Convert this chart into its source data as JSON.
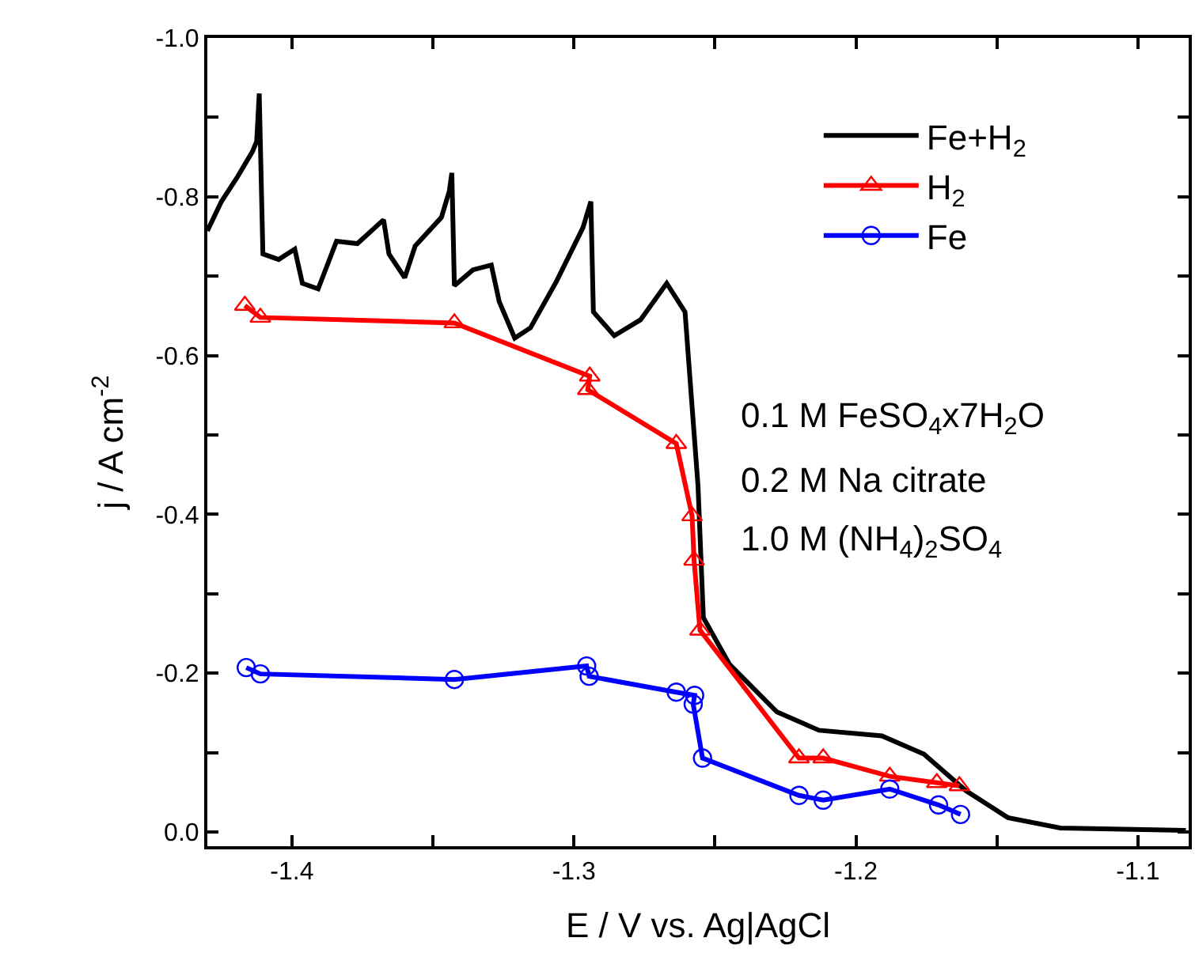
{
  "chart_data": {
    "type": "line",
    "xlabel": "E / V vs. Ag|AgCl",
    "ylabel": "j / A cm$^{-2}$",
    "xlim": [
      -1.43,
      -1.082
    ],
    "ylim": [
      0.018,
      -1.0
    ],
    "xticks": [
      -1.4,
      {
        "value": -1.35,
        "label": null
      },
      -1.3,
      {
        "value": -1.25,
        "label": null
      },
      -1.2,
      {
        "value": -1.15,
        "label": null
      },
      -1.1
    ],
    "yticks": [
      {
        "value": -1.0,
        "label": "-1.0"
      },
      {
        "value": -0.9,
        "label": null
      },
      -0.8,
      {
        "value": -0.7,
        "label": null
      },
      -0.6,
      {
        "value": -0.5,
        "label": null
      },
      -0.4,
      {
        "value": -0.3,
        "label": null
      },
      -0.2,
      {
        "value": -0.1,
        "label": null
      },
      {
        "value": 0.0,
        "label": "0.0"
      }
    ],
    "legend": "top right",
    "annotations": [
      "0.1 M FeSO$_{4}$x7H$_{2}$O",
      "0.2 M Na citrate",
      "1.0 M (NH$_{4}$)$_{2}$SO$_{4}$"
    ],
    "series": [
      {
        "name": "Fe+H$_{2}$",
        "color": "#000000",
        "marker": "none",
        "x": [
          -1.43,
          -1.425,
          -1.4195,
          -1.414,
          -1.4125,
          -1.4116,
          -1.4103,
          -1.4047,
          -1.399,
          -1.3963,
          -1.3907,
          -1.3842,
          -1.3768,
          -1.3675,
          -1.3656,
          -1.36,
          -1.3563,
          -1.347,
          -1.3442,
          -1.3433,
          -1.3424,
          -1.3358,
          -1.3293,
          -1.3265,
          -1.321,
          -1.3154,
          -1.3061,
          -1.2968,
          -1.294,
          -1.2931,
          -1.2857,
          -1.2764,
          -1.2671,
          -1.2606,
          -1.2588,
          -1.256,
          -1.2541,
          -1.2448,
          -1.228,
          -1.2131,
          -1.1908,
          -1.1759,
          -1.161,
          -1.1461,
          -1.1275,
          -1.083
        ],
        "values": [
          -0.757,
          -0.794,
          -0.824,
          -0.857,
          -0.87,
          -0.93,
          -0.728,
          -0.721,
          -0.734,
          -0.691,
          -0.684,
          -0.744,
          -0.741,
          -0.771,
          -0.728,
          -0.698,
          -0.738,
          -0.774,
          -0.807,
          -0.83,
          -0.688,
          -0.708,
          -0.714,
          -0.668,
          -0.622,
          -0.635,
          -0.694,
          -0.761,
          -0.794,
          -0.655,
          -0.625,
          -0.645,
          -0.691,
          -0.655,
          -0.569,
          -0.436,
          -0.27,
          -0.211,
          -0.151,
          -0.128,
          -0.121,
          -0.098,
          -0.052,
          -0.018,
          -0.005,
          -0.002
        ]
      },
      {
        "name": "H$_{2}$",
        "color": "#ff0000",
        "marker": "triangle",
        "x": [
          -1.4167,
          -1.4112,
          -1.3424,
          -1.2944,
          -1.2951,
          -1.2637,
          -1.2581,
          -1.2574,
          -1.2553,
          -1.2202,
          -1.2116,
          -1.188,
          -1.1713,
          -1.1633
        ],
        "values": [
          -0.663,
          -0.648,
          -0.641,
          -0.574,
          -0.557,
          -0.489,
          -0.398,
          -0.342,
          -0.254,
          -0.093,
          -0.093,
          -0.07,
          -0.062,
          -0.058
        ]
      },
      {
        "name": "Fe",
        "color": "#0000ff",
        "marker": "circle",
        "x": [
          -1.4162,
          -1.4112,
          -1.3424,
          -1.2955,
          -1.2946,
          -1.2637,
          -1.2572,
          -1.2577,
          -1.2544,
          -1.2202,
          -1.2116,
          -1.188,
          -1.1707,
          -1.1629
        ],
        "values": [
          -0.207,
          -0.199,
          -0.192,
          -0.209,
          -0.196,
          -0.176,
          -0.172,
          -0.161,
          -0.093,
          -0.046,
          -0.04,
          -0.054,
          -0.034,
          -0.022
        ]
      }
    ]
  }
}
